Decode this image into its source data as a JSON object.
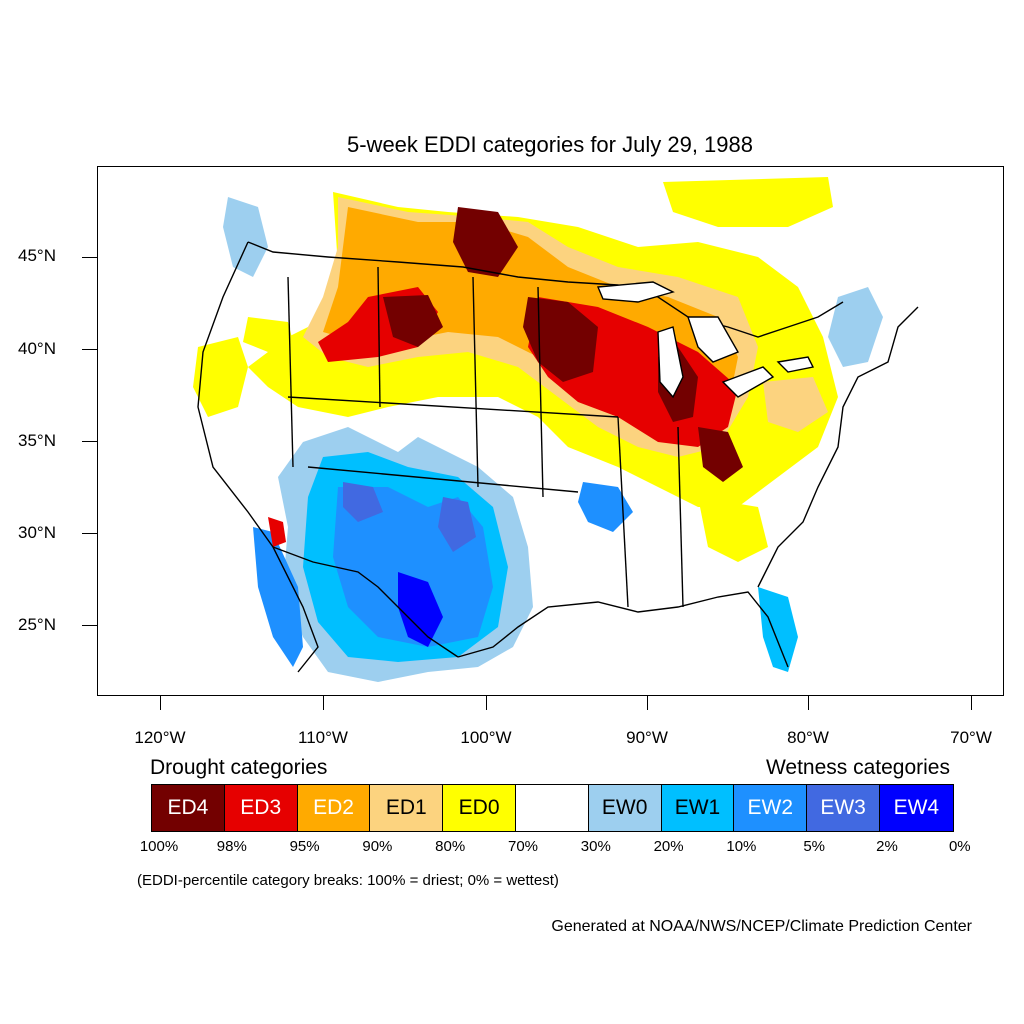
{
  "title": "5-week EDDI categories for July 29, 1988",
  "lat_labels": [
    "45°N",
    "40°N",
    "35°N",
    "30°N",
    "25°N"
  ],
  "lon_labels": [
    "120°W",
    "110°W",
    "100°W",
    "90°W",
    "80°W",
    "70°W"
  ],
  "legend": {
    "drought_heading": "Drought categories",
    "wetness_heading": "Wetness categories",
    "categories": [
      {
        "label": "ED4",
        "color": "#730000",
        "text_color": "#ffffff"
      },
      {
        "label": "ED3",
        "color": "#e60000",
        "text_color": "#ffffff"
      },
      {
        "label": "ED2",
        "color": "#ffaa00",
        "text_color": "#ffffff"
      },
      {
        "label": "ED1",
        "color": "#fcd37f",
        "text_color": "#000000"
      },
      {
        "label": "ED0",
        "color": "#ffff00",
        "text_color": "#000000"
      },
      {
        "label": "",
        "color": "#ffffff",
        "text_color": "#000000"
      },
      {
        "label": "EW0",
        "color": "#9dcfef",
        "text_color": "#000000"
      },
      {
        "label": "EW1",
        "color": "#00bfff",
        "text_color": "#000000"
      },
      {
        "label": "EW2",
        "color": "#1e90ff",
        "text_color": "#ffffff"
      },
      {
        "label": "EW3",
        "color": "#4169e1",
        "text_color": "#ffffff"
      },
      {
        "label": "EW4",
        "color": "#0000ff",
        "text_color": "#ffffff"
      }
    ],
    "percentiles": [
      "100%",
      "98%",
      "95%",
      "90%",
      "80%",
      "70%",
      "30%",
      "20%",
      "10%",
      "5%",
      "2%",
      "0%"
    ]
  },
  "note": "(EDDI-percentile category breaks: 100% = driest; 0% = wettest)",
  "credit": "Generated at NOAA/NWS/NCEP/Climate Prediction Center"
}
